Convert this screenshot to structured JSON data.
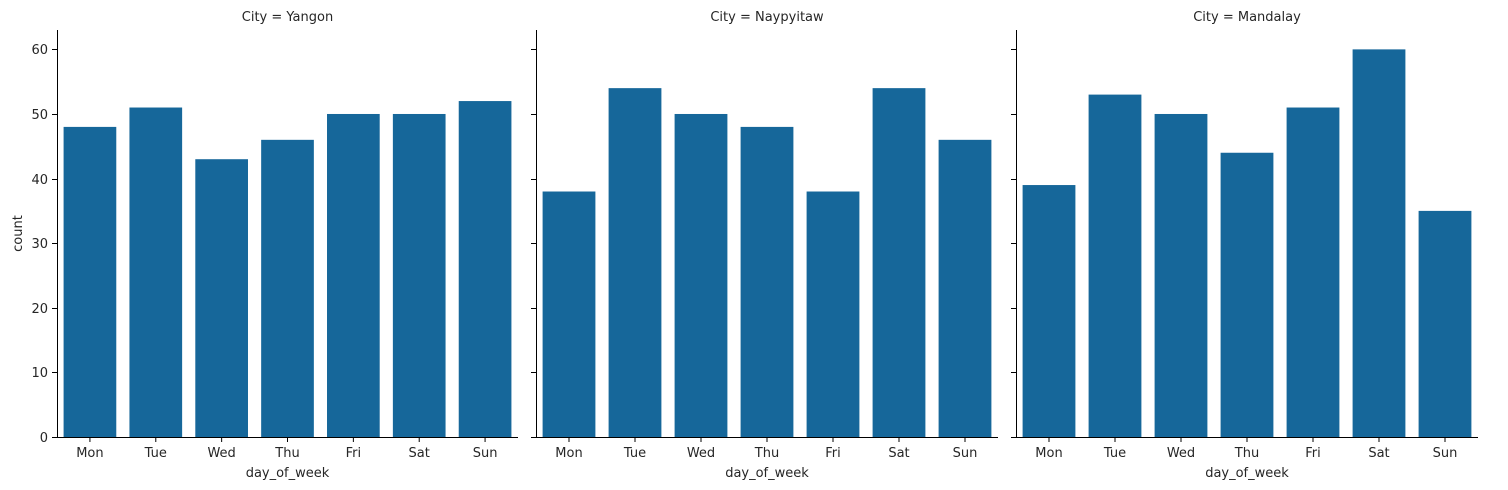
{
  "chart_data": {
    "type": "bar",
    "layout": "facet-grid",
    "shared_y": true,
    "ylabel": "count",
    "xlabel": "day_of_week",
    "ylim": [
      0,
      63
    ],
    "yticks": [
      0,
      10,
      20,
      30,
      40,
      50,
      60
    ],
    "bar_color": "#16679a",
    "categories": [
      "Mon",
      "Tue",
      "Wed",
      "Thu",
      "Fri",
      "Sat",
      "Sun"
    ],
    "panels": [
      {
        "title": "City = Yangon",
        "values": [
          48,
          51,
          43,
          46,
          50,
          50,
          52
        ]
      },
      {
        "title": "City = Naypyitaw",
        "values": [
          38,
          54,
          50,
          48,
          38,
          54,
          46
        ]
      },
      {
        "title": "City = Mandalay",
        "values": [
          39,
          53,
          50,
          44,
          51,
          60,
          35
        ]
      }
    ]
  }
}
